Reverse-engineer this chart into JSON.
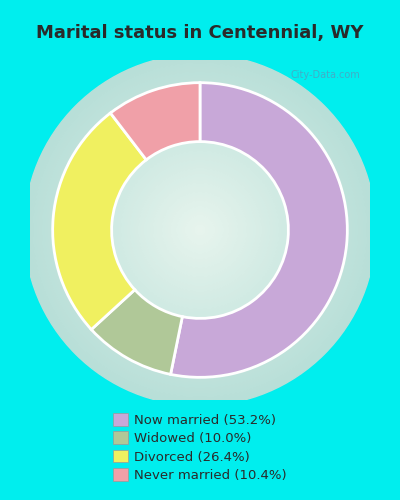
{
  "title": "Marital status in Centennial, WY",
  "slices": [
    53.2,
    10.0,
    26.4,
    10.4
  ],
  "labels": [
    "Now married (53.2%)",
    "Widowed (10.0%)",
    "Divorced (26.4%)",
    "Never married (10.4%)"
  ],
  "colors": [
    "#c8a8d8",
    "#b0c898",
    "#f0f060",
    "#f0a0a8"
  ],
  "bg_color": "#00eeee",
  "donut_hole": 0.6,
  "title_color": "#2a2a2a",
  "title_fontsize": 13,
  "legend_fontsize": 9.5,
  "watermark": "City-Data.com",
  "start_angle": 90,
  "chart_bg_center": "#e8f5ee",
  "chart_bg_edge": "#c8ead8"
}
